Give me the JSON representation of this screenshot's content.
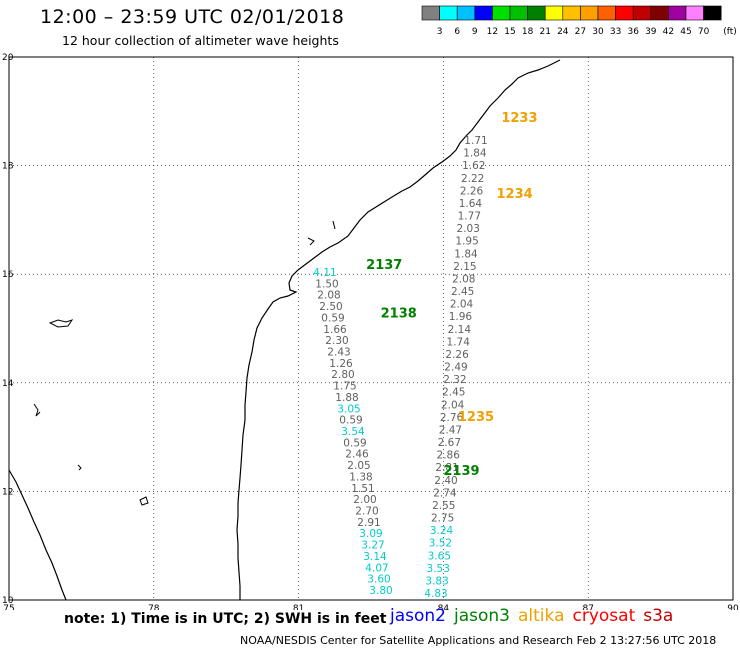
{
  "header": {
    "title": "12:00 – 23:59 UTC 02/01/2018",
    "subtitle": "12 hour collection of altimeter wave heights"
  },
  "color_scale": {
    "unit": "(ft)",
    "labels": [
      "3",
      "6",
      "9",
      "12",
      "15",
      "18",
      "21",
      "24",
      "27",
      "30",
      "33",
      "36",
      "39",
      "42",
      "45",
      "70"
    ],
    "colors": [
      "#808080",
      "#00ffff",
      "#00c0ff",
      "#0000ff",
      "#00e000",
      "#00c000",
      "#008000",
      "#ffff00",
      "#ffc000",
      "#ffa000",
      "#ff6000",
      "#ff0000",
      "#c00000",
      "#800000",
      "#a000a0",
      "#ff80ff",
      "#000000"
    ]
  },
  "axes": {
    "lon_labels": [
      "75",
      "78",
      "81",
      "84",
      "87",
      "90"
    ],
    "lat_labels": [
      "10",
      "12",
      "14",
      "16",
      "18",
      "20"
    ]
  },
  "passes": [
    {
      "label": "1233",
      "color": "#f0a000",
      "lon": 85.2,
      "lat": 18.8
    },
    {
      "label": "1234",
      "color": "#f0a000",
      "lon": 85.1,
      "lat": 17.4
    },
    {
      "label": "2137",
      "color": "#008000",
      "lon": 82.4,
      "lat": 16.1
    },
    {
      "label": "2138",
      "color": "#008000",
      "lon": 82.7,
      "lat": 15.2
    },
    {
      "label": "1235",
      "color": "#f0a000",
      "lon": 84.3,
      "lat": 13.3
    },
    {
      "label": "2139",
      "color": "#008000",
      "lon": 84.0,
      "lat": 12.3
    }
  ],
  "track_a": [
    {
      "v": "1.71",
      "c": "#606060"
    },
    {
      "v": "1.84",
      "c": "#606060"
    },
    {
      "v": "1.62",
      "c": "#606060"
    },
    {
      "v": "2.22",
      "c": "#606060"
    },
    {
      "v": "2.26",
      "c": "#606060"
    },
    {
      "v": "1.64",
      "c": "#606060"
    },
    {
      "v": "1.77",
      "c": "#606060"
    },
    {
      "v": "2.03",
      "c": "#606060"
    },
    {
      "v": "1.95",
      "c": "#606060"
    },
    {
      "v": "1.84",
      "c": "#606060"
    },
    {
      "v": "2.15",
      "c": "#606060"
    },
    {
      "v": "2.08",
      "c": "#606060"
    },
    {
      "v": "2.45",
      "c": "#606060"
    },
    {
      "v": "2.04",
      "c": "#606060"
    },
    {
      "v": "1.96",
      "c": "#606060"
    },
    {
      "v": "2.14",
      "c": "#606060"
    },
    {
      "v": "1.74",
      "c": "#606060"
    },
    {
      "v": "2.26",
      "c": "#606060"
    },
    {
      "v": "2.49",
      "c": "#606060"
    },
    {
      "v": "2.32",
      "c": "#606060"
    },
    {
      "v": "2.45",
      "c": "#606060"
    },
    {
      "v": "2.04",
      "c": "#606060"
    },
    {
      "v": "2.76",
      "c": "#606060"
    },
    {
      "v": "2.47",
      "c": "#606060"
    },
    {
      "v": "2.67",
      "c": "#606060"
    },
    {
      "v": "2.86",
      "c": "#606060"
    },
    {
      "v": "2.81",
      "c": "#606060"
    },
    {
      "v": "2.40",
      "c": "#606060"
    },
    {
      "v": "2.74",
      "c": "#606060"
    },
    {
      "v": "2.55",
      "c": "#606060"
    },
    {
      "v": "2.75",
      "c": "#606060"
    },
    {
      "v": "3.24",
      "c": "#00cccc"
    },
    {
      "v": "3.52",
      "c": "#00cccc"
    },
    {
      "v": "3.65",
      "c": "#00cccc"
    },
    {
      "v": "3.53",
      "c": "#00cccc"
    },
    {
      "v": "3.83",
      "c": "#00cccc"
    },
    {
      "v": "4.83",
      "c": "#00cccc"
    }
  ],
  "track_b": [
    {
      "v": "4.11",
      "c": "#00cccc"
    },
    {
      "v": "1.50",
      "c": "#606060"
    },
    {
      "v": "2.08",
      "c": "#606060"
    },
    {
      "v": "2.50",
      "c": "#606060"
    },
    {
      "v": "0.59",
      "c": "#606060"
    },
    {
      "v": "1.66",
      "c": "#606060"
    },
    {
      "v": "2.30",
      "c": "#606060"
    },
    {
      "v": "2.43",
      "c": "#606060"
    },
    {
      "v": "1.26",
      "c": "#606060"
    },
    {
      "v": "2.80",
      "c": "#606060"
    },
    {
      "v": "1.75",
      "c": "#606060"
    },
    {
      "v": "1.88",
      "c": "#606060"
    },
    {
      "v": "3.05",
      "c": "#00cccc"
    },
    {
      "v": "0.59",
      "c": "#606060"
    },
    {
      "v": "3.54",
      "c": "#00cccc"
    },
    {
      "v": "0.59",
      "c": "#606060"
    },
    {
      "v": "2.46",
      "c": "#606060"
    },
    {
      "v": "2.05",
      "c": "#606060"
    },
    {
      "v": "1.38",
      "c": "#606060"
    },
    {
      "v": "1.51",
      "c": "#606060"
    },
    {
      "v": "2.00",
      "c": "#606060"
    },
    {
      "v": "2.70",
      "c": "#606060"
    },
    {
      "v": "2.91",
      "c": "#606060"
    },
    {
      "v": "3.09",
      "c": "#00cccc"
    },
    {
      "v": "3.27",
      "c": "#00cccc"
    },
    {
      "v": "3.14",
      "c": "#00cccc"
    },
    {
      "v": "4.07",
      "c": "#00cccc"
    },
    {
      "v": "3.60",
      "c": "#00cccc"
    },
    {
      "v": "3.80",
      "c": "#00cccc"
    }
  ],
  "footer": {
    "note": "note: 1) Time is in UTC; 2) SWH is in feet",
    "satellites": [
      {
        "name": "jason2",
        "color": "#0000ff"
      },
      {
        "name": "jason3",
        "color": "#008000"
      },
      {
        "name": "altika",
        "color": "#f0a000"
      },
      {
        "name": "cryosat",
        "color": "#ff0000"
      },
      {
        "name": "s3a",
        "color": "#c00000"
      }
    ],
    "credit": "NOAA/NESDIS Center for Satellite Applications and Research     Feb  2 13:27:56 UTC 2018"
  }
}
